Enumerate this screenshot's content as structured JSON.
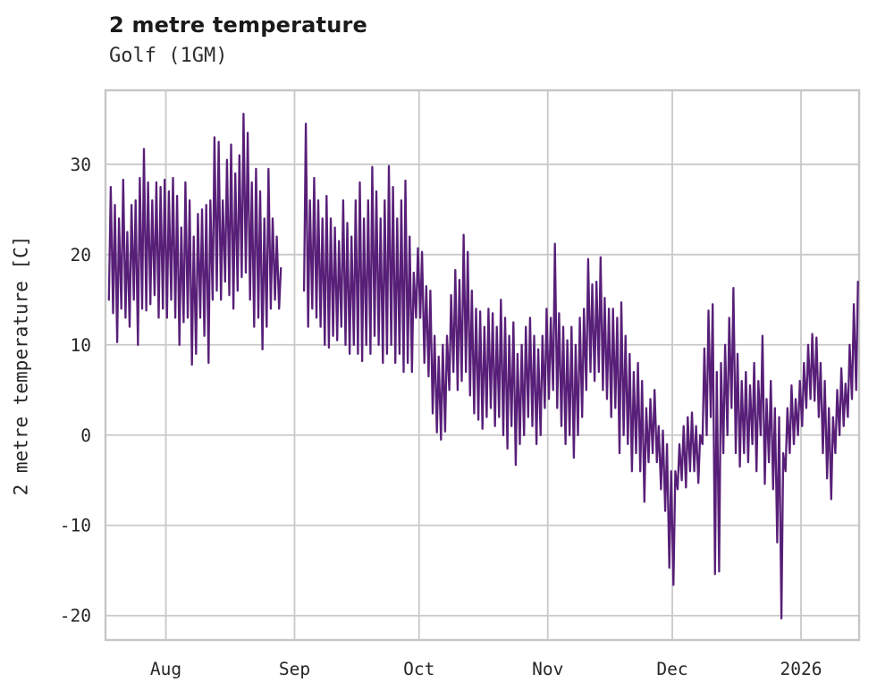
{
  "header": {
    "title": "2 metre temperature",
    "subtitle": "Golf (1GM)"
  },
  "chart_data": {
    "type": "line",
    "title": "2 metre temperature",
    "subtitle": "Golf (1GM)",
    "xlabel": "",
    "ylabel": "2 metre temperature [C]",
    "legend": false,
    "grid": true,
    "colors": {
      "line": "#581f78",
      "grid": "#c9c9c9",
      "spine": "#c6c6c6",
      "background": "#ffffff",
      "text": "#262626"
    },
    "x_unit": "days, index 0 = first plotted day (mid-July)",
    "xlim": [
      -0.54,
      181.0
    ],
    "ylim": [
      -22.7,
      38.2
    ],
    "x_ticks": [
      {
        "day": 14,
        "label": "Aug"
      },
      {
        "day": 45,
        "label": "Sep"
      },
      {
        "day": 75,
        "label": "Oct"
      },
      {
        "day": 106,
        "label": "Nov"
      },
      {
        "day": 136,
        "label": "Dec"
      },
      {
        "day": 167,
        "label": "2026"
      }
    ],
    "y_ticks": [
      {
        "value": 30,
        "label": "30"
      },
      {
        "value": 20,
        "label": "20"
      },
      {
        "value": 10,
        "label": "10"
      },
      {
        "value": 0,
        "label": "0"
      },
      {
        "value": -10,
        "label": "-10"
      },
      {
        "value": -20,
        "label": "-20"
      }
    ],
    "series": [
      {
        "name": "2 metre temperature [C]",
        "encoding": "daily [min,max] pairs; null = missing data gap",
        "daily_min_max": [
          [
            15,
            27.5
          ],
          [
            13.5,
            25.5
          ],
          [
            10.3,
            24
          ],
          [
            14,
            28.3
          ],
          [
            13,
            22.5
          ],
          [
            12,
            25.5
          ],
          [
            15,
            26
          ],
          [
            10,
            28.5
          ],
          [
            14,
            31.7
          ],
          [
            13.8,
            28
          ],
          [
            14.5,
            26
          ],
          [
            15.5,
            28
          ],
          [
            13,
            27.5
          ],
          [
            14,
            28.3
          ],
          [
            13,
            27
          ],
          [
            15,
            28.5
          ],
          [
            13,
            26.5
          ],
          [
            10,
            23
          ],
          [
            12.5,
            28
          ],
          [
            13,
            26
          ],
          [
            7.8,
            22
          ],
          [
            9,
            24.5
          ],
          [
            13,
            25
          ],
          [
            11,
            25.5
          ],
          [
            8,
            26
          ],
          [
            15,
            33
          ],
          [
            16,
            32.5
          ],
          [
            15,
            26
          ],
          [
            17,
            30.5
          ],
          [
            15.5,
            32.2
          ],
          [
            14,
            29
          ],
          [
            16,
            31
          ],
          [
            17.5,
            35.6
          ],
          [
            18,
            33.5
          ],
          [
            15,
            28
          ],
          [
            12,
            29.5
          ],
          [
            13,
            27
          ],
          [
            9.5,
            24
          ],
          [
            12,
            29.5
          ],
          [
            14,
            24
          ],
          [
            15,
            22
          ],
          [
            14,
            18.5
          ],
          null,
          null,
          null,
          null,
          null,
          [
            16,
            34.5
          ],
          [
            12,
            26
          ],
          [
            14,
            28.5
          ],
          [
            13,
            26
          ],
          [
            12,
            24
          ],
          [
            10,
            26.5
          ],
          [
            9.7,
            24
          ],
          [
            11,
            23
          ],
          [
            10.5,
            21.5
          ],
          [
            12,
            26
          ],
          [
            10,
            23.5
          ],
          [
            9,
            22
          ],
          [
            10,
            26
          ],
          [
            9,
            28
          ],
          [
            8.2,
            24
          ],
          [
            10,
            26
          ],
          [
            9,
            29.7
          ],
          [
            11,
            27
          ],
          [
            10,
            24
          ],
          [
            8,
            26
          ],
          [
            9,
            29.8
          ],
          [
            10,
            27.5
          ],
          [
            8,
            24
          ],
          [
            9,
            26
          ],
          [
            7,
            28.2
          ],
          [
            8,
            22
          ],
          [
            7,
            18
          ],
          [
            13,
            20.7
          ],
          [
            13,
            20.3
          ],
          [
            8,
            16.5
          ],
          [
            6.5,
            16
          ],
          [
            2.4,
            11
          ],
          [
            0.3,
            8.7
          ],
          [
            -0.5,
            10
          ],
          [
            0.4,
            11
          ],
          [
            5,
            15.5
          ],
          [
            7,
            18.3
          ],
          [
            5,
            17.2
          ],
          [
            6,
            22.2
          ],
          [
            7,
            20.3
          ],
          [
            4.4,
            16
          ],
          [
            2.4,
            14
          ],
          [
            1.7,
            13.7
          ],
          [
            0.7,
            12
          ],
          [
            2,
            14
          ],
          [
            3,
            13.5
          ],
          [
            1,
            12
          ],
          [
            2,
            15
          ],
          [
            0,
            13
          ],
          [
            -1.5,
            11
          ],
          [
            1,
            12.5
          ],
          [
            -3.3,
            9
          ],
          [
            -1,
            10
          ],
          [
            0,
            12
          ],
          [
            2,
            13
          ],
          [
            1,
            11
          ],
          [
            -1,
            9.5
          ],
          [
            0,
            11
          ],
          [
            3,
            14
          ],
          [
            4,
            13
          ],
          [
            5,
            21.2
          ],
          [
            3,
            13.5
          ],
          [
            1,
            12
          ],
          [
            -1,
            10.5
          ],
          [
            0,
            12
          ],
          [
            -2.5,
            10
          ],
          [
            0,
            13
          ],
          [
            2,
            14
          ],
          [
            5,
            19.5
          ],
          [
            7,
            16.7
          ],
          [
            6,
            17
          ],
          [
            7,
            19.7
          ],
          [
            5,
            15.2
          ],
          [
            4,
            14
          ],
          [
            2,
            14
          ],
          [
            3,
            13
          ],
          [
            -2,
            14.7
          ],
          [
            0,
            11
          ],
          [
            -1,
            9
          ],
          [
            -4,
            7
          ],
          [
            -2,
            8
          ],
          [
            -4,
            6
          ],
          [
            -7.4,
            3
          ],
          [
            -3,
            4
          ],
          [
            -2,
            5
          ],
          [
            -3,
            1
          ],
          [
            -6,
            0.5
          ],
          [
            -8.4,
            -1
          ],
          [
            -14.7,
            -4
          ],
          [
            -16.6,
            -4
          ],
          [
            -6,
            -1
          ],
          [
            -5,
            1
          ],
          [
            -5.8,
            2
          ],
          [
            -4,
            2.5
          ],
          [
            -4,
            1
          ],
          [
            -5.3,
            0
          ],
          [
            -1,
            9.6
          ],
          [
            0,
            13.8
          ],
          [
            2,
            14.5
          ],
          [
            -15.4,
            7
          ],
          [
            -15.1,
            8
          ],
          [
            -2,
            10
          ],
          [
            0,
            13
          ],
          [
            3,
            16.3
          ],
          [
            -2,
            9
          ],
          [
            -3.5,
            6
          ],
          [
            -2,
            7
          ],
          [
            -3,
            5.5
          ],
          [
            -1,
            8
          ],
          [
            -4,
            6
          ],
          [
            0,
            11
          ],
          [
            -5.4,
            4
          ],
          [
            -3,
            6
          ],
          [
            -6,
            3
          ],
          [
            -11.9,
            2
          ],
          [
            -20.3,
            -2
          ],
          [
            -4,
            3
          ],
          [
            -2,
            5.5
          ],
          [
            -1,
            4
          ],
          [
            0,
            6
          ],
          [
            1,
            8
          ],
          [
            3,
            10
          ],
          [
            4,
            11.2
          ],
          [
            3.8,
            10.8
          ],
          [
            2,
            8
          ],
          [
            -2,
            6
          ],
          [
            -4.8,
            3
          ],
          [
            -7.1,
            2
          ],
          [
            -2,
            5
          ],
          [
            0,
            7.4
          ],
          [
            1,
            5.7
          ],
          [
            2,
            10
          ],
          [
            4,
            14.5
          ],
          [
            5,
            17
          ]
        ]
      }
    ]
  }
}
